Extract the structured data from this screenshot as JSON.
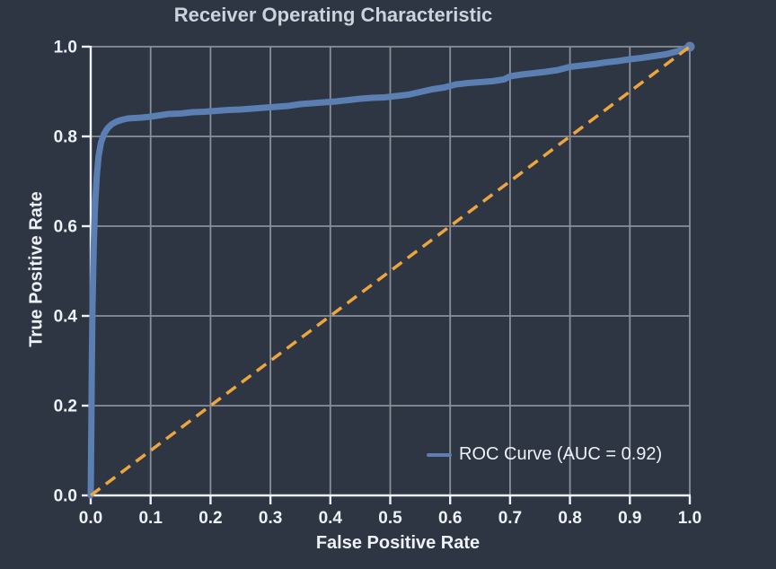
{
  "page": {
    "background_color": "#2d3642",
    "title_color": "#ccd3dd",
    "text_color": "#eef1f5"
  },
  "chart_data": {
    "type": "line",
    "title": "Receiver Operating Characteristic",
    "xlabel": "False Positive Rate",
    "ylabel": "True Positive Rate",
    "xlim": [
      0.0,
      1.0
    ],
    "ylim": [
      0.0,
      1.0
    ],
    "x_ticks": [
      "0.0",
      "0.1",
      "0.2",
      "0.3",
      "0.4",
      "0.5",
      "0.6",
      "0.7",
      "0.8",
      "0.9",
      "1.0"
    ],
    "y_ticks": [
      "0.0",
      "0.2",
      "0.4",
      "0.6",
      "0.8",
      "1.0"
    ],
    "grid": true,
    "grid_color": "#8a9099",
    "axis_color": "#eef1f5",
    "legend": {
      "position": "lower right",
      "frame": false,
      "entries": [
        {
          "label": "ROC Curve (AUC = 0.92)",
          "color": "#5b7fb2"
        }
      ]
    },
    "series": [
      {
        "name": "ROC Curve (AUC = 0.92)",
        "color": "#5b7fb2",
        "style": "solid",
        "stroke_width": 7,
        "x": [
          0.0,
          0.001,
          0.002,
          0.003,
          0.005,
          0.007,
          0.01,
          0.013,
          0.017,
          0.022,
          0.028,
          0.035,
          0.043,
          0.052,
          0.062,
          0.073,
          0.085,
          0.1,
          0.115,
          0.13,
          0.15,
          0.17,
          0.19,
          0.21,
          0.23,
          0.25,
          0.27,
          0.29,
          0.31,
          0.33,
          0.35,
          0.37,
          0.39,
          0.41,
          0.43,
          0.45,
          0.47,
          0.49,
          0.51,
          0.53,
          0.55,
          0.57,
          0.59,
          0.61,
          0.63,
          0.65,
          0.67,
          0.69,
          0.7,
          0.72,
          0.74,
          0.76,
          0.78,
          0.8,
          0.82,
          0.84,
          0.86,
          0.88,
          0.9,
          0.92,
          0.94,
          0.96,
          0.98,
          1.0
        ],
        "y": [
          0.0,
          0.15,
          0.3,
          0.42,
          0.55,
          0.64,
          0.71,
          0.755,
          0.785,
          0.805,
          0.818,
          0.827,
          0.833,
          0.837,
          0.84,
          0.841,
          0.842,
          0.844,
          0.847,
          0.85,
          0.851,
          0.854,
          0.855,
          0.857,
          0.859,
          0.86,
          0.862,
          0.864,
          0.866,
          0.868,
          0.872,
          0.874,
          0.876,
          0.878,
          0.881,
          0.884,
          0.886,
          0.887,
          0.89,
          0.893,
          0.899,
          0.905,
          0.909,
          0.916,
          0.919,
          0.921,
          0.923,
          0.927,
          0.934,
          0.938,
          0.941,
          0.944,
          0.948,
          0.955,
          0.958,
          0.961,
          0.965,
          0.968,
          0.972,
          0.975,
          0.979,
          0.983,
          0.99,
          1.0
        ]
      },
      {
        "name": "diagonal-reference",
        "color": "#eda63f",
        "style": "dashed",
        "stroke_width": 3.5,
        "x": [
          0.0,
          1.0
        ],
        "y": [
          0.0,
          1.0
        ]
      }
    ],
    "auc": 0.92
  }
}
